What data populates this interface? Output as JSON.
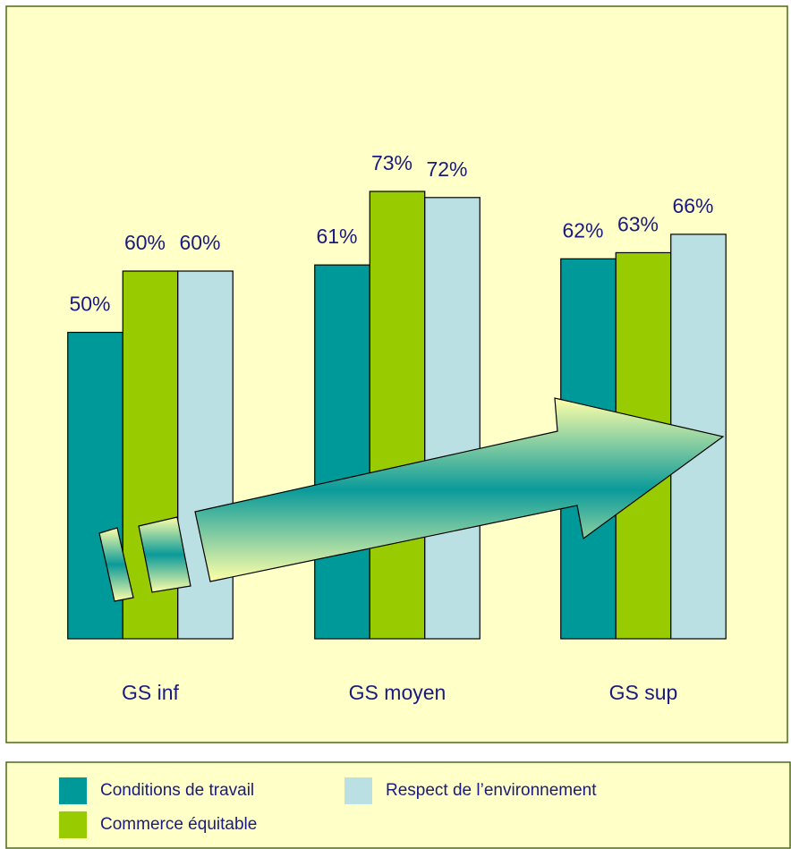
{
  "chart_data": {
    "type": "bar",
    "categories": [
      "GS inf",
      "GS moyen",
      "GS sup"
    ],
    "series": [
      {
        "name": "Conditions de travail",
        "color": "#009999",
        "values": [
          50,
          61,
          62
        ],
        "value_labels": [
          "50%",
          "61%",
          "62%"
        ]
      },
      {
        "name": "Commerce équitable",
        "color": "#99cc00",
        "values": [
          60,
          73,
          63
        ],
        "value_labels": [
          "60%",
          "73%",
          "63%"
        ]
      },
      {
        "name": "Respect de l’environnement",
        "color": "#bbe0e3",
        "values": [
          60,
          72,
          66
        ],
        "value_labels": [
          "60%",
          "72%",
          "66%"
        ]
      }
    ],
    "ylim": [
      0,
      100
    ]
  }
}
